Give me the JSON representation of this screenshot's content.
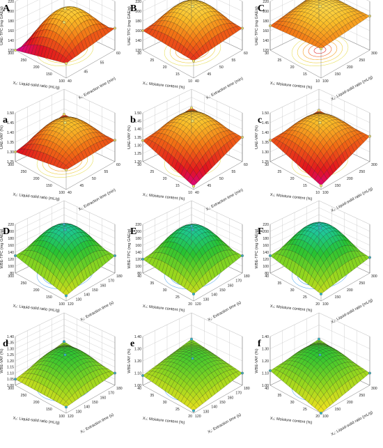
{
  "figure": {
    "panels": [
      {
        "id": "A",
        "label": "A",
        "palette": "warm",
        "zlabel": "UAE-TPC (mg GAE/g)",
        "zticks": [
          "120",
          "140",
          "160",
          "180",
          "200",
          "220"
        ],
        "zrange": [
          120,
          220
        ],
        "x1label": "X₁: Extraction time (min)",
        "x1ticks": [
          "40",
          "45",
          "55",
          "60"
        ],
        "x2label": "X₂: Liquid-solid ratio (mL/g)",
        "x2ticks": [
          "100",
          "150",
          "200",
          "250",
          "300"
        ]
      },
      {
        "id": "B",
        "label": "B",
        "palette": "warm",
        "zlabel": "UAE-TPC (mg GAE/g)",
        "zticks": [
          "120",
          "140",
          "160",
          "180",
          "200",
          "220"
        ],
        "zrange": [
          120,
          220
        ],
        "x1label": "X₁: Extraction time (min)",
        "x1ticks": [
          "40",
          "45",
          "50",
          "55",
          "60"
        ],
        "x2label": "X₃: Moisture content (%)",
        "x2ticks": [
          "10",
          "15",
          "20",
          "25",
          "30"
        ]
      },
      {
        "id": "C",
        "label": "C",
        "palette": "warm",
        "zlabel": "UAE-TPC (mg GAE/g)",
        "zticks": [
          "120",
          "140",
          "160",
          "180",
          "200",
          "220"
        ],
        "zrange": [
          120,
          220
        ],
        "x1label": "X₂: Liquid-solid ratio (mL/g)",
        "x1ticks": [
          "100",
          "150",
          "200",
          "250",
          "300"
        ],
        "x2label": "X₃: Moisture content (%)",
        "x2ticks": [
          "10",
          "15",
          "20",
          "25",
          "30"
        ]
      },
      {
        "id": "a",
        "label": "a",
        "palette": "warm",
        "zlabel": "UAE-VAY (%)",
        "zticks": [
          "1.25",
          "1.30",
          "1.35",
          "1.40",
          "1.45",
          "1.50"
        ],
        "zrange": [
          1.25,
          1.5
        ],
        "x1label": "X₁: Extraction time (min)",
        "x1ticks": [
          "40",
          "45",
          "50",
          "55",
          "60"
        ],
        "x2label": "X₂: Liquid-solid ratio (mL/g)",
        "x2ticks": [
          "100",
          "150",
          "200",
          "250",
          "300"
        ]
      },
      {
        "id": "b",
        "label": "b",
        "palette": "warm",
        "zlabel": "UAE-VAY (%)",
        "zticks": [
          "1.20",
          "1.25",
          "1.30",
          "1.35",
          "1.40",
          "1.45",
          "1.50"
        ],
        "zrange": [
          1.2,
          1.5
        ],
        "x1label": "X₁: Extraction time (min)",
        "x1ticks": [
          "40",
          "45",
          "50",
          "55",
          "60"
        ],
        "x2label": "X₃: Moisture content (%)",
        "x2ticks": [
          "10",
          "15",
          "20",
          "25",
          "30"
        ]
      },
      {
        "id": "c",
        "label": "c",
        "palette": "warm",
        "zlabel": "UAE-VAY (%)",
        "zticks": [
          "1.25",
          "1.30",
          "1.35",
          "1.40",
          "1.45",
          "1.50"
        ],
        "zrange": [
          1.25,
          1.5
        ],
        "x1label": "X₂: Liquid-solid ratio (mL/g)",
        "x1ticks": [
          "100",
          "150",
          "200",
          "250",
          "300"
        ],
        "x2label": "X₃: Moisture content (%)",
        "x2ticks": [
          "10",
          "15",
          "20",
          "25",
          "30"
        ]
      },
      {
        "id": "D",
        "label": "D",
        "palette": "green",
        "zlabel": "WBE-TPC (mg GAE/g)",
        "zticks": [
          "80",
          "100",
          "120",
          "140",
          "160",
          "180",
          "200",
          "220"
        ],
        "zrange": [
          80,
          220
        ],
        "x1label": "X₁: Extraction time (s)",
        "x1ticks": [
          "120",
          "130",
          "140",
          "150",
          "160",
          "170",
          "180"
        ],
        "x2label": "X₂: Liquid-solid ratio (mL/g)",
        "x2ticks": [
          "100",
          "150",
          "200",
          "250",
          "300"
        ]
      },
      {
        "id": "E",
        "label": "E",
        "palette": "green",
        "zlabel": "WBE-TPC (mg GAE/g)",
        "zticks": [
          "80",
          "100",
          "120",
          "140",
          "160",
          "180",
          "200",
          "220"
        ],
        "zrange": [
          80,
          220
        ],
        "x1label": "X₁: Extraction time (s)",
        "x1ticks": [
          "120",
          "130",
          "140",
          "150",
          "160",
          "170",
          "180"
        ],
        "x2label": "X₃: Moisture content (%)",
        "x2ticks": [
          "20",
          "25",
          "30",
          "35",
          "40"
        ]
      },
      {
        "id": "F",
        "label": "F",
        "palette": "green",
        "zlabel": "WBE-TPC (mg GAE/g)",
        "zticks": [
          "80",
          "100",
          "120",
          "140",
          "160",
          "180",
          "200",
          "220"
        ],
        "zrange": [
          80,
          220
        ],
        "x1label": "X₂: Liquid-solid ratio (mL/g)",
        "x1ticks": [
          "100",
          "150",
          "200",
          "250",
          "300"
        ],
        "x2label": "X₃: Moisture content (%)",
        "x2ticks": [
          "20",
          "25",
          "30",
          "35",
          "40"
        ]
      },
      {
        "id": "d",
        "label": "d",
        "palette": "green",
        "zlabel": "WBE-VAY (%)",
        "zticks": [
          "1.00",
          "1.05",
          "1.10",
          "1.15",
          "1.20",
          "1.25",
          "1.30",
          "1.35",
          "1.40"
        ],
        "zrange": [
          1.0,
          1.4
        ],
        "x1label": "X₁: Extraction time (s)",
        "x1ticks": [
          "120",
          "130",
          "140",
          "150",
          "160",
          "170",
          "180"
        ],
        "x2label": "X₂: Liquid-solid ratio (mL/g)",
        "x2ticks": [
          "100",
          "150",
          "200",
          "250",
          "300"
        ]
      },
      {
        "id": "e",
        "label": "e",
        "palette": "green",
        "zlabel": "WBE-VAY (%)",
        "zticks": [
          "1.00",
          "1.10",
          "1.20",
          "1.30",
          "1.40"
        ],
        "zrange": [
          1.0,
          1.4
        ],
        "x1label": "X₁: Extraction time (s)",
        "x1ticks": [
          "120",
          "130",
          "140",
          "150",
          "160",
          "170",
          "180"
        ],
        "x2label": "X₃: Moisture content (%)",
        "x2ticks": [
          "20",
          "25",
          "30",
          "35",
          "40"
        ]
      },
      {
        "id": "f",
        "label": "f",
        "palette": "green",
        "zlabel": "WBE-VAY (%)",
        "zticks": [
          "1.00",
          "1.10",
          "1.20",
          "1.30",
          "1.40"
        ],
        "zrange": [
          1.0,
          1.4
        ],
        "x1label": "X₂: Liquid-solid ratio (mL/g)",
        "x1ticks": [
          "100",
          "150",
          "200",
          "250",
          "300"
        ],
        "x2label": "X₃: Moisture content (%)",
        "x2ticks": [
          "20",
          "25",
          "30",
          "35",
          "40"
        ]
      }
    ]
  },
  "chart_data": [
    {
      "type": "surface",
      "id": "A",
      "title": "",
      "zlabel": "UAE-TPC (mg GAE/g)",
      "xlabel": "X₁: Extraction time (min)",
      "ylabel": "X₂: Liquid-solid ratio (mL/g)",
      "xlim": [
        40,
        60
      ],
      "ylim": [
        100,
        300
      ],
      "zlim": [
        120,
        220
      ],
      "peak": 205,
      "corners": [
        150,
        165,
        120,
        120
      ],
      "center_x": 50,
      "center_y": 200
    },
    {
      "type": "surface",
      "id": "B",
      "title": "",
      "zlabel": "UAE-TPC (mg GAE/g)",
      "xlabel": "X₁: Extraction time (min)",
      "ylabel": "X₃: Moisture content (%)",
      "xlim": [
        40,
        60
      ],
      "ylim": [
        10,
        30
      ],
      "zlim": [
        120,
        220
      ],
      "peak": 210,
      "corners": [
        155,
        165,
        160,
        170
      ],
      "center_x": 50,
      "center_y": 20
    },
    {
      "type": "surface",
      "id": "C",
      "title": "",
      "zlabel": "UAE-TPC (mg GAE/g)",
      "xlabel": "X₂: Liquid-solid ratio (mL/g)",
      "ylabel": "X₃: Moisture content (%)",
      "xlim": [
        100,
        300
      ],
      "ylim": [
        10,
        30
      ],
      "zlim": [
        120,
        220
      ],
      "peak": 210,
      "corners": [
        180,
        190,
        170,
        185
      ],
      "center_x": 200,
      "center_y": 20
    },
    {
      "type": "surface",
      "id": "a",
      "title": "",
      "zlabel": "UAE-VAY (%)",
      "xlabel": "X₁: Extraction time (min)",
      "ylabel": "X₂: Liquid-solid ratio (mL/g)",
      "xlim": [
        40,
        60
      ],
      "ylim": [
        100,
        300
      ],
      "zlim": [
        1.25,
        1.5
      ],
      "peak": 1.45,
      "corners": [
        1.35,
        1.36,
        1.3,
        1.35
      ],
      "center_x": 50,
      "center_y": 200
    },
    {
      "type": "surface",
      "id": "b",
      "title": "",
      "zlabel": "UAE-VAY (%)",
      "xlabel": "X₁: Extraction time (min)",
      "ylabel": "X₃: Moisture content (%)",
      "xlim": [
        40,
        60
      ],
      "ylim": [
        10,
        30
      ],
      "zlim": [
        1.2,
        1.5
      ],
      "peak": 1.45,
      "corners": [
        1.22,
        1.35,
        1.33,
        1.36
      ],
      "center_x": 50,
      "center_y": 20
    },
    {
      "type": "surface",
      "id": "c",
      "title": "",
      "zlabel": "UAE-VAY (%)",
      "xlabel": "X₂: Liquid-solid ratio (mL/g)",
      "ylabel": "X₃: Moisture content (%)",
      "xlim": [
        100,
        300
      ],
      "ylim": [
        10,
        30
      ],
      "zlim": [
        1.25,
        1.5
      ],
      "peak": 1.45,
      "corners": [
        1.27,
        1.38,
        1.36,
        1.37
      ],
      "center_x": 200,
      "center_y": 20
    },
    {
      "type": "surface",
      "id": "D",
      "title": "",
      "zlabel": "WBE-TPC (mg GAE/g)",
      "xlabel": "X₁: Extraction time (s)",
      "ylabel": "X₂: Liquid-solid ratio (mL/g)",
      "xlim": [
        120,
        180
      ],
      "ylim": [
        100,
        300
      ],
      "zlim": [
        80,
        220
      ],
      "peak": 205,
      "corners": [
        95,
        130,
        130,
        140
      ],
      "center_x": 150,
      "center_y": 200
    },
    {
      "type": "surface",
      "id": "E",
      "title": "",
      "zlabel": "WBE-TPC (mg GAE/g)",
      "xlabel": "X₁: Extraction time (s)",
      "ylabel": "X₃: Moisture content (%)",
      "xlim": [
        120,
        180
      ],
      "ylim": [
        20,
        40
      ],
      "zlim": [
        80,
        220
      ],
      "peak": 205,
      "corners": [
        100,
        130,
        120,
        135
      ],
      "center_x": 150,
      "center_y": 30
    },
    {
      "type": "surface",
      "id": "F",
      "title": "",
      "zlabel": "WBE-TPC (mg GAE/g)",
      "xlabel": "X₂: Liquid-solid ratio (mL/g)",
      "ylabel": "X₃: Moisture content (%)",
      "xlim": [
        100,
        300
      ],
      "ylim": [
        20,
        40
      ],
      "zlim": [
        80,
        220
      ],
      "peak": 210,
      "corners": [
        100,
        125,
        130,
        140
      ],
      "center_x": 200,
      "center_y": 30
    },
    {
      "type": "surface",
      "id": "d",
      "title": "",
      "zlabel": "WBE-VAY (%)",
      "xlabel": "X₁: Extraction time (s)",
      "ylabel": "X₂: Liquid-solid ratio (mL/g)",
      "xlim": [
        120,
        180
      ],
      "ylim": [
        100,
        300
      ],
      "zlim": [
        1.0,
        1.4
      ],
      "peak": 1.25,
      "corners": [
        1.05,
        1.1,
        1.05,
        1.13
      ],
      "center_x": 150,
      "center_y": 200
    },
    {
      "type": "surface",
      "id": "e",
      "title": "",
      "zlabel": "WBE-VAY (%)",
      "xlabel": "X₁: Extraction time (s)",
      "ylabel": "X₃: Moisture content (%)",
      "xlim": [
        120,
        180
      ],
      "ylim": [
        20,
        40
      ],
      "zlim": [
        1.0,
        1.4
      ],
      "peak": 1.22,
      "corners": [
        1.02,
        1.1,
        1.08,
        1.15
      ],
      "center_x": 150,
      "center_y": 30
    },
    {
      "type": "surface",
      "id": "f",
      "title": "",
      "zlabel": "WBE-VAY (%)",
      "xlabel": "X₂: Liquid-solid ratio (mL/g)",
      "ylabel": "X₃: Moisture content (%)",
      "xlim": [
        100,
        300
      ],
      "ylim": [
        20,
        40
      ],
      "zlim": [
        1.0,
        1.4
      ],
      "peak": 1.25,
      "corners": [
        1.0,
        1.1,
        1.12,
        1.15
      ],
      "center_x": 200,
      "center_y": 30
    }
  ]
}
